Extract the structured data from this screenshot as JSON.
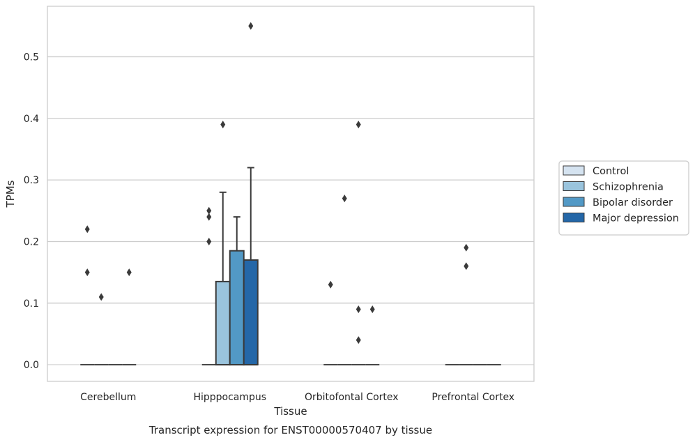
{
  "chart_data": {
    "type": "box",
    "title": "",
    "caption": "Transcript expression for ENST00000570407 by tissue",
    "xlabel": "Tissue",
    "ylabel": "TPMs",
    "ylim": [
      -0.027,
      0.582
    ],
    "yticks": [
      0.0,
      0.1,
      0.2,
      0.3,
      0.4,
      0.5
    ],
    "ytick_labels": [
      "0.0",
      "0.1",
      "0.2",
      "0.3",
      "0.4",
      "0.5"
    ],
    "grid": true,
    "legend_position": "right",
    "categories": [
      "Cerebellum",
      "Hipppocampus",
      "Orbitofontal Cortex",
      "Prefrontal Cortex"
    ],
    "series": [
      {
        "name": "Control",
        "color": "#d5e3f0",
        "boxes": [
          {
            "q1": 0,
            "median": 0,
            "q3": 0,
            "whisker_low": 0,
            "whisker_high": 0,
            "outliers": [
              0.22,
              0.15
            ]
          },
          {
            "q1": 0,
            "median": 0,
            "q3": 0,
            "whisker_low": 0,
            "whisker_high": 0,
            "outliers": [
              0.25,
              0.24,
              0.2
            ]
          },
          {
            "q1": 0,
            "median": 0,
            "q3": 0,
            "whisker_low": 0,
            "whisker_high": 0,
            "outliers": [
              0.13
            ]
          },
          {
            "q1": 0,
            "median": 0,
            "q3": 0,
            "whisker_low": 0,
            "whisker_high": 0,
            "outliers": []
          }
        ]
      },
      {
        "name": "Schizophrenia",
        "color": "#9ac4dd",
        "boxes": [
          {
            "q1": 0,
            "median": 0,
            "q3": 0,
            "whisker_low": 0,
            "whisker_high": 0,
            "outliers": [
              0.11
            ]
          },
          {
            "q1": 0,
            "median": 0,
            "q3": 0.135,
            "whisker_low": 0,
            "whisker_high": 0.28,
            "outliers": [
              0.39
            ]
          },
          {
            "q1": 0,
            "median": 0,
            "q3": 0,
            "whisker_low": 0,
            "whisker_high": 0,
            "outliers": [
              0.27
            ]
          },
          {
            "q1": 0,
            "median": 0,
            "q3": 0,
            "whisker_low": 0,
            "whisker_high": 0,
            "outliers": [
              0.19,
              0.16
            ]
          }
        ]
      },
      {
        "name": "Bipolar disorder",
        "color": "#5299c6",
        "boxes": [
          {
            "q1": 0,
            "median": 0,
            "q3": 0,
            "whisker_low": 0,
            "whisker_high": 0,
            "outliers": []
          },
          {
            "q1": 0,
            "median": 0,
            "q3": 0.185,
            "whisker_low": 0,
            "whisker_high": 0.24,
            "outliers": []
          },
          {
            "q1": 0,
            "median": 0,
            "q3": 0,
            "whisker_low": 0,
            "whisker_high": 0,
            "outliers": [
              0.39,
              0.09,
              0.04
            ]
          },
          {
            "q1": 0,
            "median": 0,
            "q3": 0,
            "whisker_low": 0,
            "whisker_high": 0,
            "outliers": []
          }
        ]
      },
      {
        "name": "Major depression",
        "color": "#2467a8",
        "boxes": [
          {
            "q1": 0,
            "median": 0,
            "q3": 0,
            "whisker_low": 0,
            "whisker_high": 0,
            "outliers": [
              0.15
            ]
          },
          {
            "q1": 0,
            "median": 0,
            "q3": 0.17,
            "whisker_low": 0,
            "whisker_high": 0.32,
            "outliers": [
              0.55
            ]
          },
          {
            "q1": 0,
            "median": 0,
            "q3": 0,
            "whisker_low": 0,
            "whisker_high": 0,
            "outliers": [
              0.09
            ]
          },
          {
            "q1": 0,
            "median": 0,
            "q3": 0,
            "whisker_low": 0,
            "whisker_high": 0,
            "outliers": []
          }
        ]
      }
    ]
  }
}
